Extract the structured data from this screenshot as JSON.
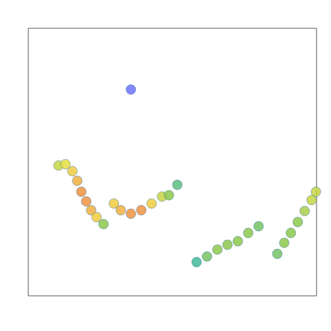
{
  "chart_data": {
    "type": "scatter",
    "xlim": [
      0,
      100
    ],
    "ylim": [
      0,
      100
    ],
    "zlim": [
      0,
      1
    ],
    "tick_labels": false,
    "grid": false,
    "x": [
      10.5,
      12.9,
      15.3,
      17.0,
      18.4,
      20.1,
      21.8,
      23.7,
      26.1,
      29.7,
      32.1,
      35.6,
      39.2,
      42.8,
      46.4,
      48.8,
      51.7,
      58.4,
      62.0,
      65.6,
      69.1,
      72.7,
      76.3,
      79.9,
      86.4,
      88.8,
      91.1,
      93.5,
      95.9,
      98.3,
      99.8,
      35.6
    ],
    "y": [
      48.7,
      49.2,
      46.6,
      43.0,
      38.9,
      35.3,
      32.0,
      29.4,
      26.8,
      34.5,
      32.0,
      30.7,
      32.0,
      34.5,
      37.1,
      37.6,
      41.5,
      12.6,
      14.7,
      17.3,
      19.1,
      20.4,
      23.5,
      26.0,
      15.7,
      19.8,
      23.5,
      27.6,
      31.7,
      35.8,
      38.9,
      77.1
    ],
    "density": [
      0.6,
      0.65,
      0.7,
      0.75,
      0.8,
      0.8,
      0.75,
      0.7,
      0.5,
      0.7,
      0.75,
      0.8,
      0.8,
      0.7,
      0.6,
      0.5,
      0.4,
      0.35,
      0.45,
      0.5,
      0.5,
      0.5,
      0.5,
      0.45,
      0.45,
      0.5,
      0.5,
      0.5,
      0.55,
      0.6,
      0.6,
      0.1
    ]
  }
}
